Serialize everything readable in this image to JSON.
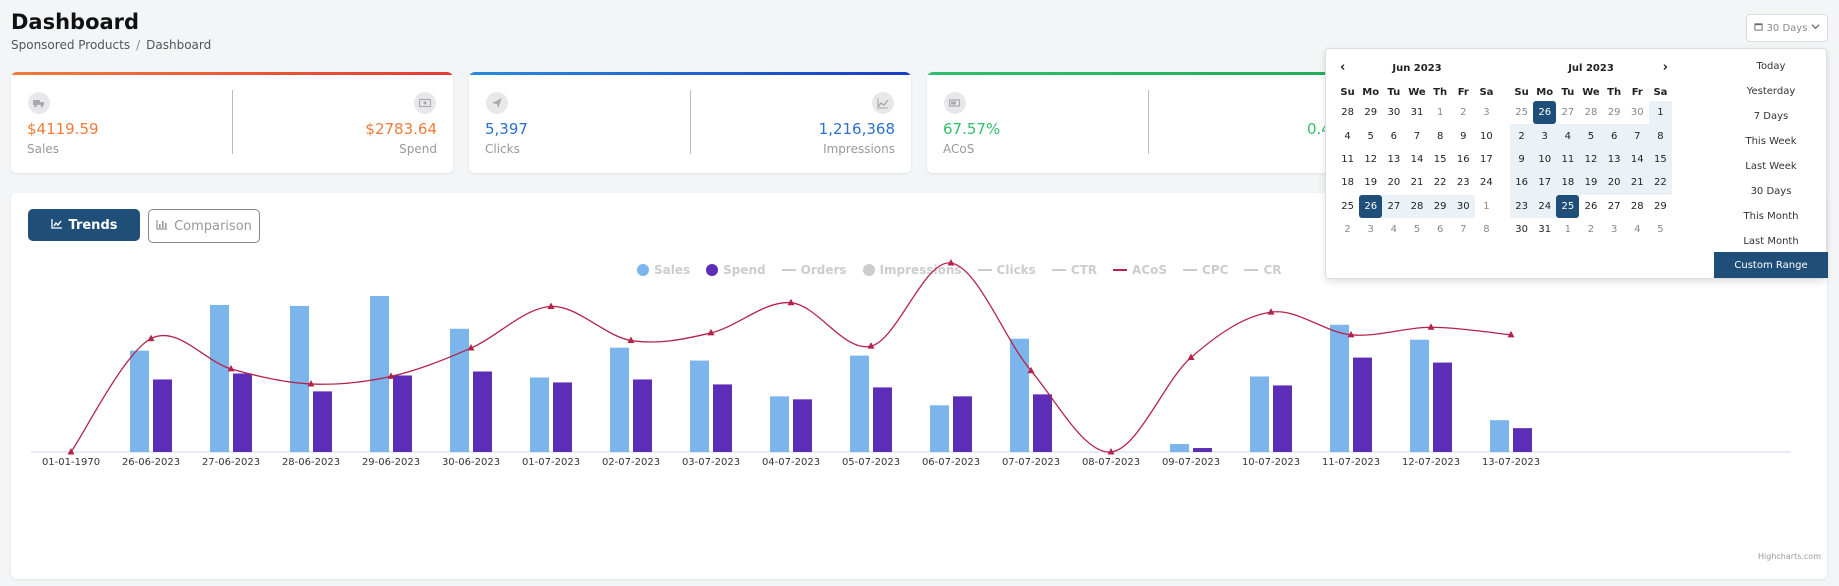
{
  "header": {
    "title": "Dashboard",
    "breadcrumb": [
      "Sponsored Products",
      "Dashboard"
    ]
  },
  "range_button": {
    "label": "30 Days"
  },
  "cards": [
    {
      "color": "#ef7c3a",
      "left": {
        "value": "$4119.59",
        "label": "Sales"
      },
      "right": {
        "value": "$2783.64",
        "label": "Spend"
      },
      "icons": [
        "truck-icon",
        "money-icon"
      ]
    },
    {
      "color": "#2b6fd1",
      "left": {
        "value": "5,397",
        "label": "Clicks"
      },
      "right": {
        "value": "1,216,368",
        "label": "Impressions"
      },
      "icons": [
        "send-icon",
        "trend-icon"
      ]
    },
    {
      "color": "#2fbf6a",
      "left": {
        "value": "67.57%",
        "label": "ACoS"
      },
      "right": {
        "value": "0.4",
        "label": ""
      },
      "icons": [
        "battery-icon"
      ]
    }
  ],
  "tabs": {
    "trends": "Trends",
    "comparison": "Comparison"
  },
  "legend": [
    "Sales",
    "Spend",
    "Orders",
    "Impressions",
    "Clicks",
    "CTR",
    "ACoS",
    "CPC",
    "CR"
  ],
  "colors": {
    "sales": "#7cb5ec",
    "spend": "#5c2db7",
    "acos": "#b5234a",
    "accent": "#1f4e79"
  },
  "chart_data": {
    "type": "bar",
    "categories": [
      "01-01-1970",
      "26-06-2023",
      "27-06-2023",
      "28-06-2023",
      "29-06-2023",
      "30-06-2023",
      "01-07-2023",
      "02-07-2023",
      "03-07-2023",
      "04-07-2023",
      "05-07-2023",
      "06-07-2023",
      "07-07-2023",
      "08-07-2023",
      "09-07-2023",
      "10-07-2023",
      "11-07-2023",
      "12-07-2023",
      "13-07-2023"
    ],
    "series": [
      {
        "name": "Sales",
        "type": "bar",
        "values": [
          0,
          102,
          148,
          147,
          157,
          124,
          75,
          105,
          92,
          56,
          97,
          47,
          114,
          0,
          8,
          76,
          128,
          113,
          32
        ]
      },
      {
        "name": "Spend",
        "type": "bar",
        "values": [
          0,
          73,
          79,
          61,
          77,
          81,
          70,
          73,
          68,
          53,
          65,
          56,
          58,
          0,
          4,
          67,
          95,
          90,
          24
        ]
      },
      {
        "name": "ACoS",
        "type": "line",
        "values": [
          0,
          60,
          44,
          36,
          40,
          55,
          77,
          59,
          63,
          79,
          56,
          100,
          43,
          0,
          50,
          74,
          62,
          66,
          62
        ]
      }
    ],
    "credit": "Highcharts.com"
  },
  "datepicker": {
    "weekdays": [
      "Su",
      "Mo",
      "Tu",
      "We",
      "Th",
      "Fr",
      "Sa"
    ],
    "months": [
      {
        "name": "Jun 2023",
        "weeks": [
          [
            "28",
            "29",
            "30",
            "31",
            "1",
            "2",
            "3"
          ],
          [
            "4",
            "5",
            "6",
            "7",
            "8",
            "9",
            "10"
          ],
          [
            "11",
            "12",
            "13",
            "14",
            "15",
            "16",
            "17"
          ],
          [
            "18",
            "19",
            "20",
            "21",
            "22",
            "23",
            "24"
          ],
          [
            "25",
            "26",
            "27",
            "28",
            "29",
            "30",
            "1"
          ],
          [
            "2",
            "3",
            "4",
            "5",
            "6",
            "7",
            "8"
          ]
        ]
      },
      {
        "name": "Jul 2023",
        "weeks": [
          [
            "25",
            "26",
            "27",
            "28",
            "29",
            "30",
            "1"
          ],
          [
            "2",
            "3",
            "4",
            "5",
            "6",
            "7",
            "8"
          ],
          [
            "9",
            "10",
            "11",
            "12",
            "13",
            "14",
            "15"
          ],
          [
            "16",
            "17",
            "18",
            "19",
            "20",
            "21",
            "22"
          ],
          [
            "23",
            "24",
            "25",
            "26",
            "27",
            "28",
            "29"
          ],
          [
            "30",
            "31",
            "1",
            "2",
            "3",
            "4",
            "5"
          ]
        ]
      }
    ],
    "ranges": [
      "Today",
      "Yesterday",
      "7 Days",
      "This Week",
      "Last Week",
      "30 Days",
      "This Month",
      "Last Month",
      "Custom Range"
    ],
    "active_range": "Custom Range"
  }
}
